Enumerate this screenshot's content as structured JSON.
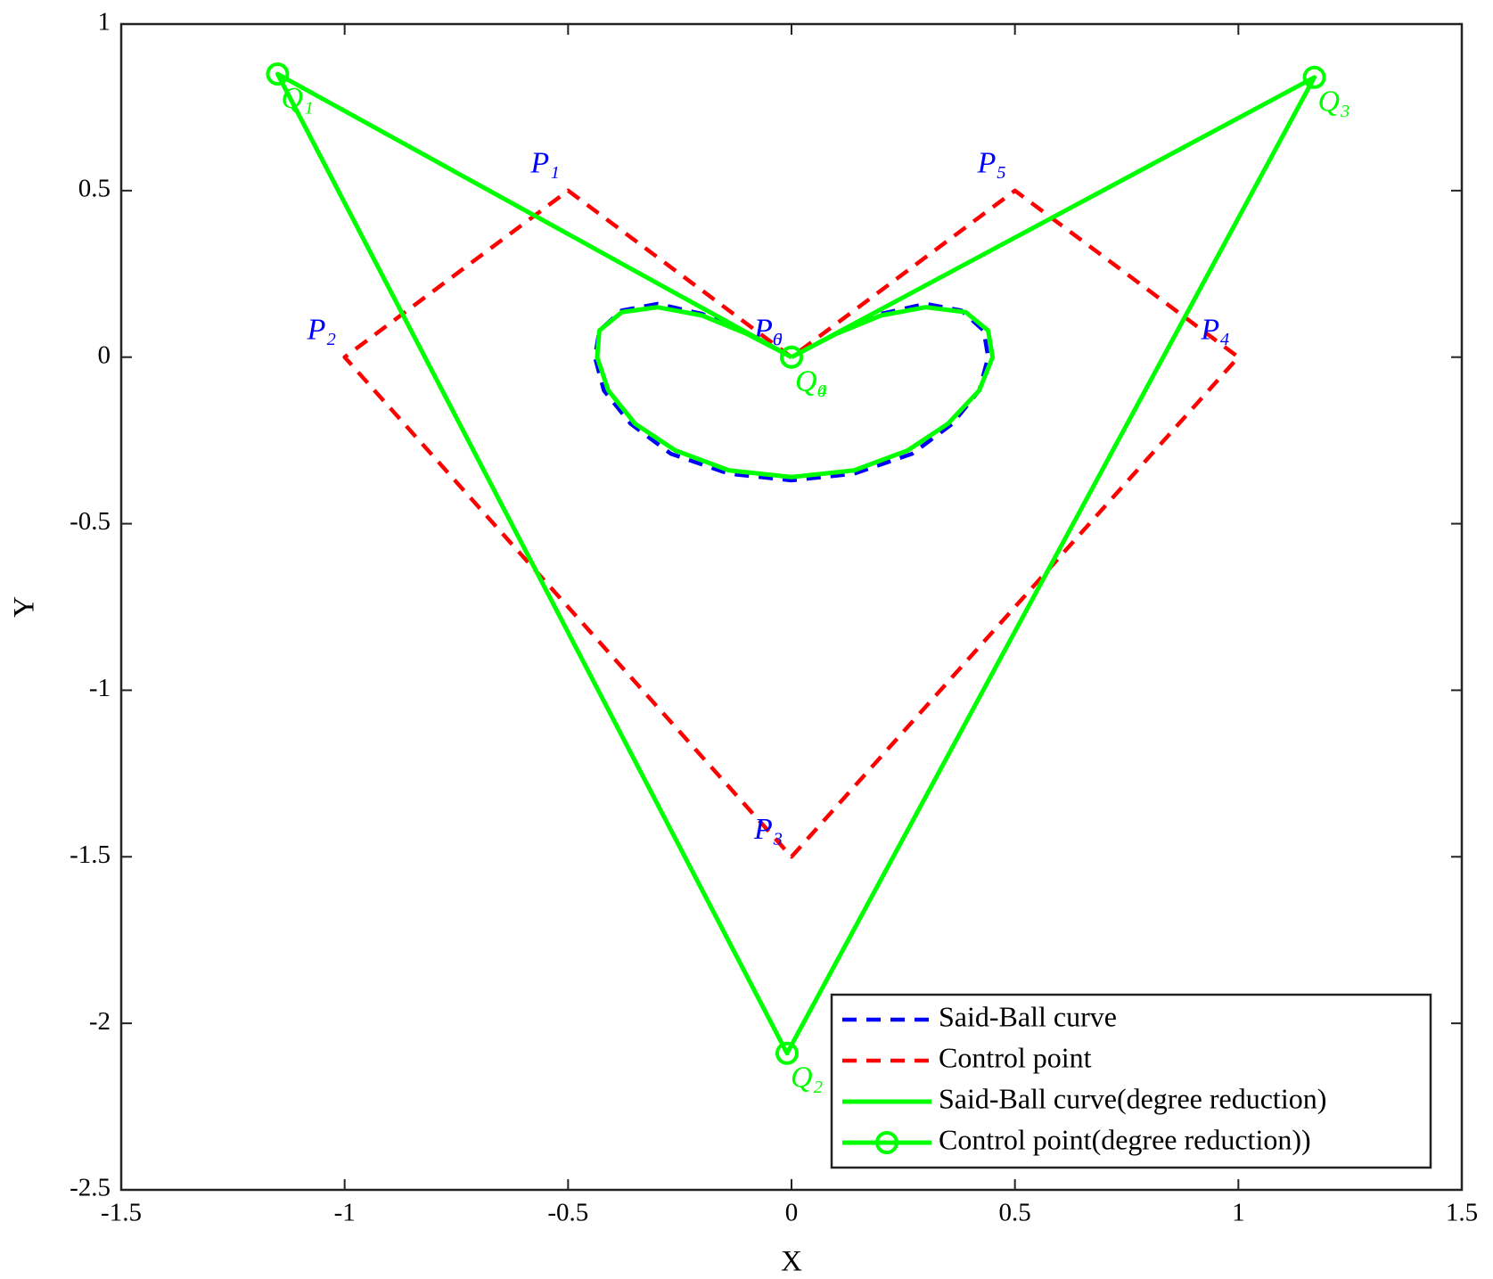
{
  "chart_data": {
    "type": "line",
    "xlabel": "X",
    "ylabel": "Y",
    "xlim": [
      -1.5,
      1.5
    ],
    "xticks": [
      -1.5,
      -1,
      -0.5,
      0,
      0.5,
      1,
      1.5
    ],
    "ylim": [
      -2.5,
      1
    ],
    "yticks": [
      -2.5,
      -2,
      -1.5,
      -1,
      -0.5,
      0,
      0.5,
      1
    ],
    "grid": false,
    "legend": "lower right",
    "series": [
      {
        "name": "Said-Ball curve",
        "color": "#0000ff",
        "style": "dashed",
        "x": [
          0,
          -0.1,
          -0.2,
          -0.3,
          -0.38,
          -0.43,
          -0.44,
          -0.42,
          -0.36,
          -0.27,
          -0.14,
          0,
          0.14,
          0.27,
          0.36,
          0.42,
          0.44,
          0.43,
          0.38,
          0.3,
          0.2,
          0.1,
          0
        ],
        "values": [
          0,
          0.07,
          0.13,
          0.16,
          0.14,
          0.08,
          0,
          -0.1,
          -0.2,
          -0.29,
          -0.35,
          -0.37,
          -0.35,
          -0.29,
          -0.2,
          -0.1,
          0,
          0.08,
          0.14,
          0.16,
          0.13,
          0.07,
          0
        ]
      },
      {
        "name": "Control point",
        "color": "#ff0000",
        "style": "dashed",
        "x": [
          0,
          -0.5,
          -1,
          0,
          1,
          0.5,
          0
        ],
        "values": [
          0,
          0.5,
          0,
          -1.5,
          0,
          0.5,
          0
        ],
        "labels": [
          "P₀",
          "P₁",
          "P₂",
          "P₃",
          "P₄",
          "P₅",
          "P₆"
        ],
        "label_color": "#0000ff"
      },
      {
        "name": "Said-Ball curve(degree reduction)",
        "color": "#00ff00",
        "style": "solid",
        "x": [
          0,
          -0.1,
          -0.2,
          -0.3,
          -0.38,
          -0.43,
          -0.435,
          -0.41,
          -0.35,
          -0.26,
          -0.14,
          0,
          0.14,
          0.26,
          0.35,
          0.42,
          0.45,
          0.44,
          0.39,
          0.3,
          0.2,
          0.1,
          0
        ],
        "values": [
          0,
          0.07,
          0.125,
          0.15,
          0.135,
          0.08,
          0,
          -0.1,
          -0.2,
          -0.28,
          -0.34,
          -0.36,
          -0.34,
          -0.28,
          -0.2,
          -0.1,
          0,
          0.08,
          0.135,
          0.15,
          0.125,
          0.07,
          0
        ]
      },
      {
        "name": "Control point(degree reduction))",
        "color": "#00ff00",
        "style": "solid",
        "marker": "circle",
        "x": [
          0,
          -1.15,
          -0.01,
          1.17,
          0
        ],
        "values": [
          0,
          0.85,
          -2.09,
          0.84,
          0
        ],
        "labels": [
          "Q₀",
          "Q₁",
          "Q₂",
          "Q₃",
          "Q₄"
        ],
        "label_color": "#00ff00"
      }
    ]
  }
}
